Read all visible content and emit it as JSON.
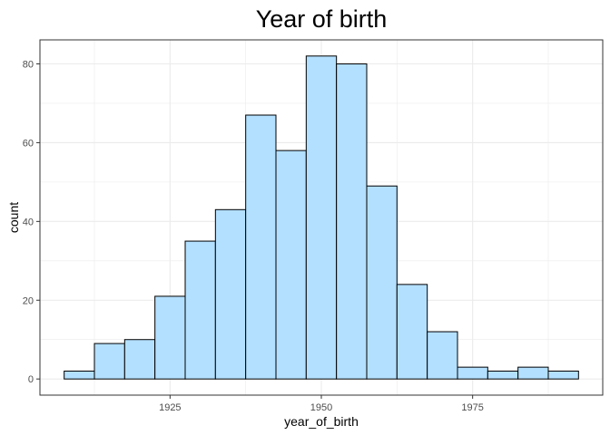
{
  "chart_data": {
    "type": "bar",
    "title": "Year of birth",
    "xlabel": "year_of_birth",
    "ylabel": "count",
    "bin_width": 5,
    "bins": [
      {
        "start": 1907.5,
        "end": 1912.5,
        "count": 2
      },
      {
        "start": 1912.5,
        "end": 1917.5,
        "count": 9
      },
      {
        "start": 1917.5,
        "end": 1922.5,
        "count": 10
      },
      {
        "start": 1922.5,
        "end": 1927.5,
        "count": 21
      },
      {
        "start": 1927.5,
        "end": 1932.5,
        "count": 35
      },
      {
        "start": 1932.5,
        "end": 1937.5,
        "count": 43
      },
      {
        "start": 1937.5,
        "end": 1942.5,
        "count": 67
      },
      {
        "start": 1942.5,
        "end": 1947.5,
        "count": 58
      },
      {
        "start": 1947.5,
        "end": 1952.5,
        "count": 82
      },
      {
        "start": 1952.5,
        "end": 1957.5,
        "count": 80
      },
      {
        "start": 1957.5,
        "end": 1962.5,
        "count": 49
      },
      {
        "start": 1962.5,
        "end": 1967.5,
        "count": 24
      },
      {
        "start": 1967.5,
        "end": 1972.5,
        "count": 12
      },
      {
        "start": 1972.5,
        "end": 1977.5,
        "count": 3
      },
      {
        "start": 1977.5,
        "end": 1982.5,
        "count": 2
      },
      {
        "start": 1982.5,
        "end": 1987.5,
        "count": 3
      },
      {
        "start": 1987.5,
        "end": 1992.5,
        "count": 2
      }
    ],
    "xlim": [
      1903.5,
      1996.5
    ],
    "ylim": [
      -4.1,
      86.1
    ],
    "xticks": [
      1925,
      1950,
      1975
    ],
    "yticks": [
      0,
      20,
      40,
      60,
      80
    ],
    "grid": true,
    "legend": "none",
    "bar_fill": "#b3e0ff",
    "bar_stroke": "#000000",
    "grid_color": "#ebebeb",
    "panel_border_color": "#333333"
  }
}
